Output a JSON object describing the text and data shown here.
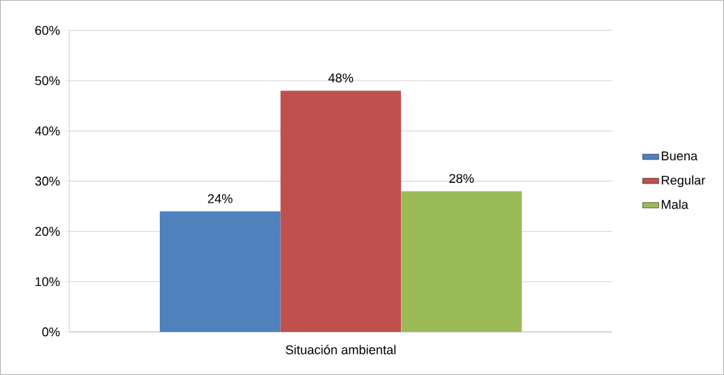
{
  "chart_data": {
    "type": "bar",
    "categories": [
      "Situación ambiental"
    ],
    "series": [
      {
        "name": "Buena",
        "color": "#4f81bd",
        "values": [
          24
        ],
        "value_labels": [
          "24%"
        ]
      },
      {
        "name": "Regular",
        "color": "#c0504d",
        "values": [
          48
        ],
        "value_labels": [
          "48%"
        ]
      },
      {
        "name": "Mala",
        "color": "#9bbb59",
        "values": [
          28
        ],
        "value_labels": [
          "28%"
        ]
      }
    ],
    "ylim": [
      0,
      60
    ],
    "yticks": [
      {
        "value": 0,
        "label": "0%"
      },
      {
        "value": 10,
        "label": "10%"
      },
      {
        "value": 20,
        "label": "20%"
      },
      {
        "value": 30,
        "label": "30%"
      },
      {
        "value": 40,
        "label": "40%"
      },
      {
        "value": 50,
        "label": "50%"
      },
      {
        "value": 60,
        "label": "60%"
      }
    ],
    "grid": "y",
    "legend": "right"
  }
}
